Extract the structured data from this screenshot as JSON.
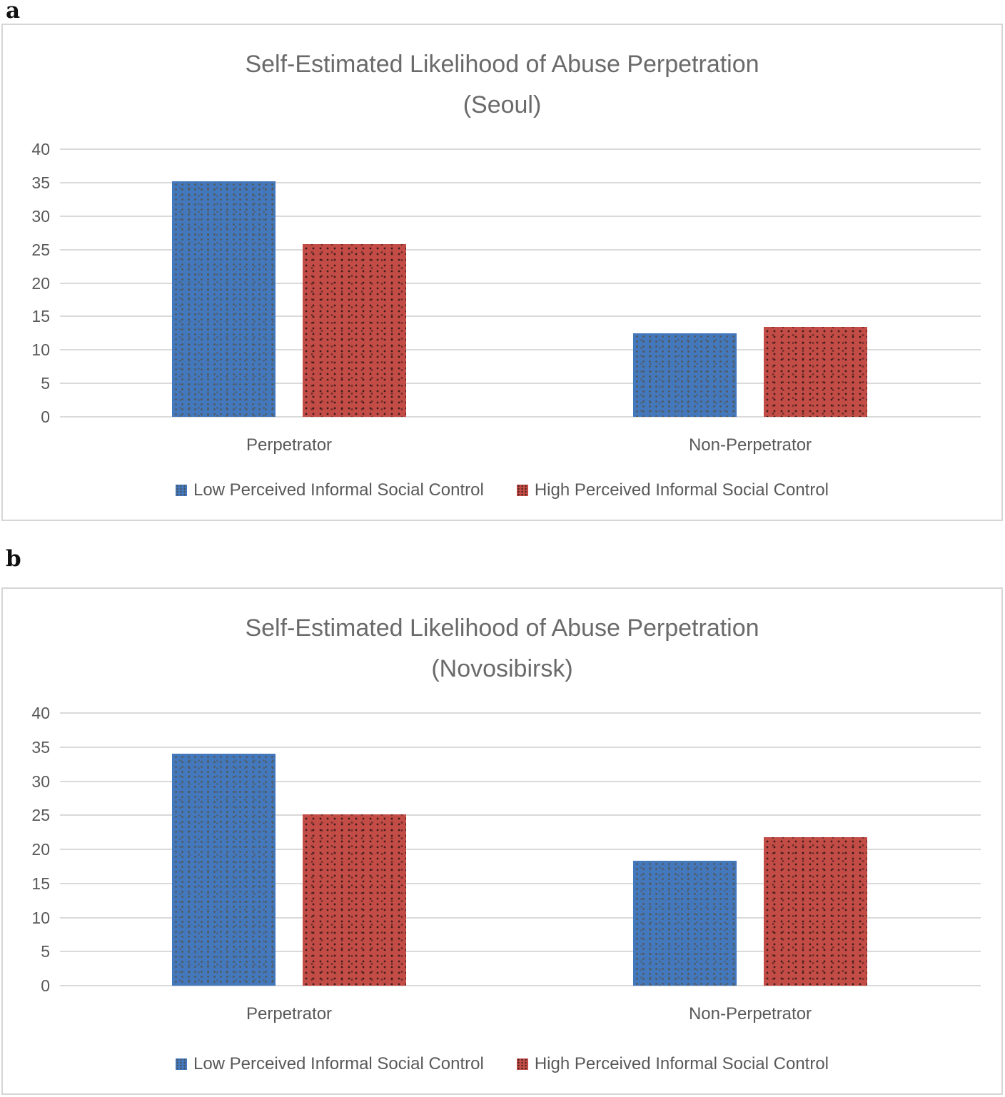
{
  "figure": {
    "panel_a_label": "a",
    "panel_b_label": "b"
  },
  "colors": {
    "series_low": "#4478BD",
    "series_high": "#C34C46",
    "gridline": "#DADADA",
    "text": "#595959",
    "title_text": "#6A6A6A"
  },
  "chart_data": [
    {
      "type": "bar",
      "title": "Self-Estimated Likelihood of Abuse Perpetration",
      "subtitle": "(Seoul)",
      "categories": [
        "Perpetrator",
        "Non-Perpetrator"
      ],
      "series": [
        {
          "name": "Low Perceived Informal Social Control",
          "color": "#4478BD",
          "pattern": "speckled",
          "values": [
            35.2,
            12.5
          ]
        },
        {
          "name": "High Perceived Informal Social Control",
          "color": "#C34C46",
          "pattern": "speckled",
          "values": [
            25.8,
            13.4
          ]
        }
      ],
      "xlabel": "",
      "ylabel": "",
      "ylim": [
        0,
        40
      ],
      "yticks": [
        0,
        5,
        10,
        15,
        20,
        25,
        30,
        35,
        40
      ],
      "grid": true,
      "legend_position": "bottom"
    },
    {
      "type": "bar",
      "title": "Self-Estimated Likelihood of Abuse Perpetration",
      "subtitle": "(Novosibirsk)",
      "categories": [
        "Perpetrator",
        "Non-Perpetrator"
      ],
      "series": [
        {
          "name": "Low Perceived Informal Social Control",
          "color": "#4478BD",
          "pattern": "speckled",
          "values": [
            34.0,
            18.3
          ]
        },
        {
          "name": "High Perceived Informal Social Control",
          "color": "#C34C46",
          "pattern": "speckled",
          "values": [
            25.1,
            21.8
          ]
        }
      ],
      "xlabel": "",
      "ylabel": "",
      "ylim": [
        0,
        40
      ],
      "yticks": [
        0,
        5,
        10,
        15,
        20,
        25,
        30,
        35,
        40
      ],
      "grid": true,
      "legend_position": "bottom"
    }
  ]
}
